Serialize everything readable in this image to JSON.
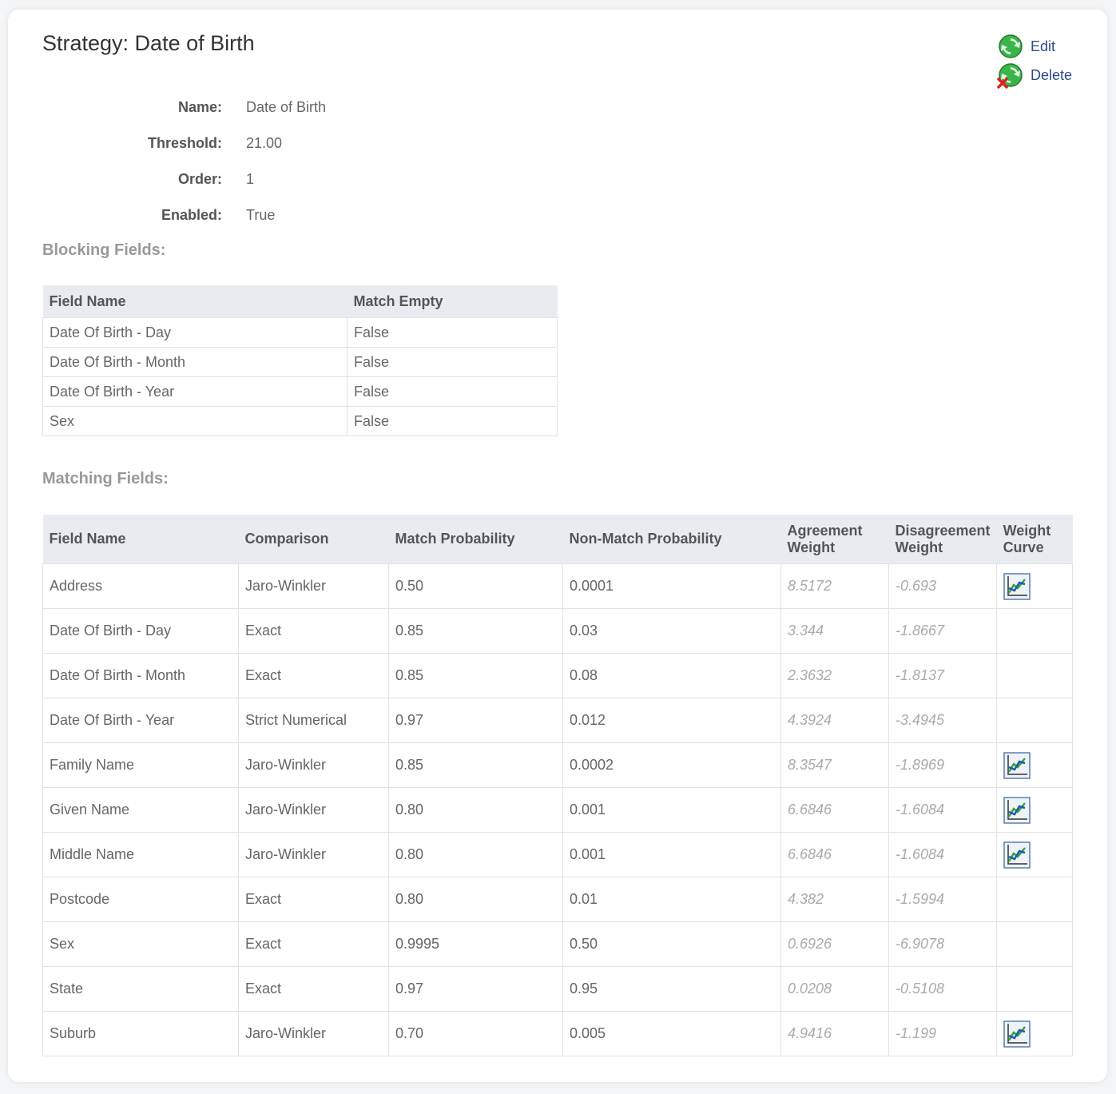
{
  "page_title": "Strategy: Date of Birth",
  "actions": {
    "edit_label": "Edit",
    "delete_label": "Delete"
  },
  "details": [
    {
      "label": "Name:",
      "value": "Date of Birth"
    },
    {
      "label": "Threshold:",
      "value": "21.00"
    },
    {
      "label": "Order:",
      "value": "1"
    },
    {
      "label": "Enabled:",
      "value": "True"
    }
  ],
  "blocking": {
    "title": "Blocking Fields:",
    "headers": [
      "Field Name",
      "Match Empty"
    ],
    "rows": [
      [
        "Date Of Birth - Day",
        "False"
      ],
      [
        "Date Of Birth - Month",
        "False"
      ],
      [
        "Date Of Birth - Year",
        "False"
      ],
      [
        "Sex",
        "False"
      ]
    ]
  },
  "matching": {
    "title": "Matching Fields:",
    "headers": [
      "Field Name",
      "Comparison",
      "Match Probability",
      "Non-Match Probability",
      "Agreement Weight",
      "Disagreement Weight",
      "Weight Curve"
    ],
    "rows": [
      {
        "field": "Address",
        "comparison": "Jaro-Winkler",
        "match_prob": "0.50",
        "nonmatch_prob": "0.0001",
        "agreement": "8.5172",
        "disagreement": "-0.693",
        "curve": true
      },
      {
        "field": "Date Of Birth - Day",
        "comparison": "Exact",
        "match_prob": "0.85",
        "nonmatch_prob": "0.03",
        "agreement": "3.344",
        "disagreement": "-1.8667",
        "curve": false
      },
      {
        "field": "Date Of Birth - Month",
        "comparison": "Exact",
        "match_prob": "0.85",
        "nonmatch_prob": "0.08",
        "agreement": "2.3632",
        "disagreement": "-1.8137",
        "curve": false
      },
      {
        "field": "Date Of Birth - Year",
        "comparison": "Strict Numerical",
        "match_prob": "0.97",
        "nonmatch_prob": "0.012",
        "agreement": "4.3924",
        "disagreement": "-3.4945",
        "curve": false
      },
      {
        "field": "Family Name",
        "comparison": "Jaro-Winkler",
        "match_prob": "0.85",
        "nonmatch_prob": "0.0002",
        "agreement": "8.3547",
        "disagreement": "-1.8969",
        "curve": true
      },
      {
        "field": "Given Name",
        "comparison": "Jaro-Winkler",
        "match_prob": "0.80",
        "nonmatch_prob": "0.001",
        "agreement": "6.6846",
        "disagreement": "-1.6084",
        "curve": true
      },
      {
        "field": "Middle Name",
        "comparison": "Jaro-Winkler",
        "match_prob": "0.80",
        "nonmatch_prob": "0.001",
        "agreement": "6.6846",
        "disagreement": "-1.6084",
        "curve": true
      },
      {
        "field": "Postcode",
        "comparison": "Exact",
        "match_prob": "0.80",
        "nonmatch_prob": "0.01",
        "agreement": "4.382",
        "disagreement": "-1.5994",
        "curve": false
      },
      {
        "field": "Sex",
        "comparison": "Exact",
        "match_prob": "0.9995",
        "nonmatch_prob": "0.50",
        "agreement": "0.6926",
        "disagreement": "-6.9078",
        "curve": false
      },
      {
        "field": "State",
        "comparison": "Exact",
        "match_prob": "0.97",
        "nonmatch_prob": "0.95",
        "agreement": "0.0208",
        "disagreement": "-0.5108",
        "curve": false
      },
      {
        "field": "Suburb",
        "comparison": "Jaro-Winkler",
        "match_prob": "0.70",
        "nonmatch_prob": "0.005",
        "agreement": "4.9416",
        "disagreement": "-1.199",
        "curve": true
      }
    ]
  },
  "icons": {
    "edit": "edit-recycle-icon",
    "delete": "delete-recycle-icon",
    "weight_curve": "line-chart-icon"
  }
}
